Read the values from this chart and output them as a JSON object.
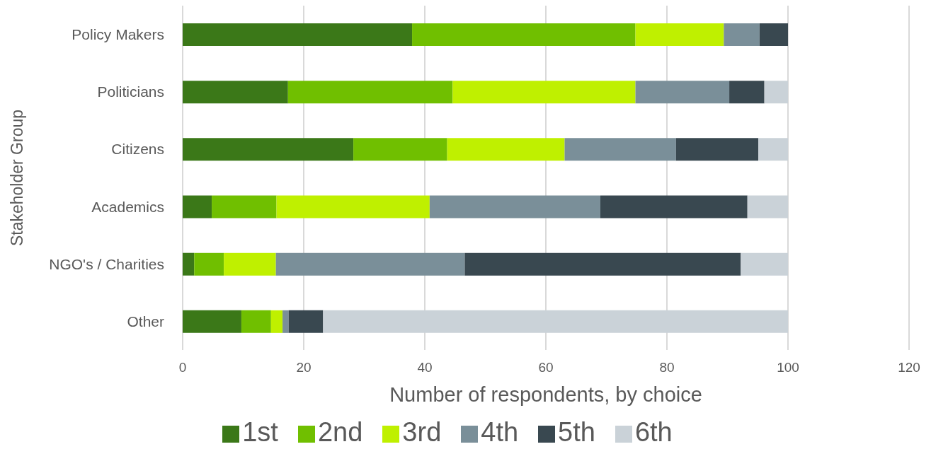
{
  "chart_data": {
    "type": "bar",
    "orientation": "horizontal",
    "stacked": true,
    "xlabel": "Number of respondents, by choice",
    "ylabel": "Stakeholder Group",
    "categories": [
      "Policy Makers",
      "Politicians",
      "Citizens",
      "Academics",
      "NGO's / Charities",
      "Other"
    ],
    "series": [
      {
        "name": "1st",
        "color": "#3b7818",
        "values": [
          37.9,
          17.4,
          28.2,
          4.8,
          1.9,
          9.7
        ]
      },
      {
        "name": "2nd",
        "color": "#70bf00",
        "values": [
          36.9,
          27.2,
          15.5,
          10.7,
          4.9,
          4.9
        ]
      },
      {
        "name": "3rd",
        "color": "#bff000",
        "values": [
          14.6,
          30.2,
          19.4,
          25.3,
          8.6,
          1.9
        ]
      },
      {
        "name": "4th",
        "color": "#7a8f99",
        "values": [
          5.9,
          15.5,
          18.4,
          28.2,
          31.2,
          1.0
        ]
      },
      {
        "name": "5th",
        "color": "#394850",
        "values": [
          4.7,
          5.8,
          13.6,
          24.3,
          45.6,
          5.7
        ]
      },
      {
        "name": "6th",
        "color": "#cad2d8",
        "values": [
          0,
          3.9,
          4.9,
          6.7,
          7.8,
          76.8
        ]
      }
    ],
    "xlim": [
      0,
      120
    ],
    "xticks": [
      0,
      20,
      40,
      60,
      80,
      100,
      120
    ],
    "grid": "x",
    "legend": "bottom"
  }
}
